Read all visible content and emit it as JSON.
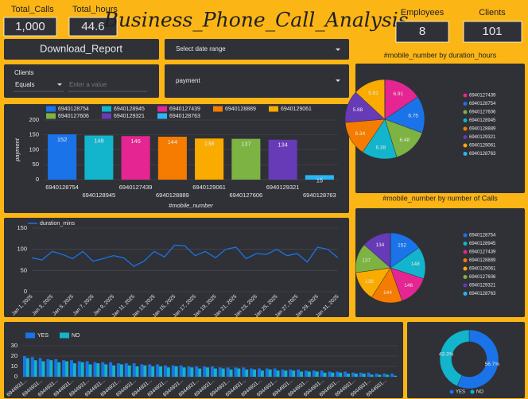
{
  "header": {
    "title": "Business_Phone_Call_Analysis"
  },
  "kpis": [
    {
      "label": "Total_Calls",
      "value": "1,000"
    },
    {
      "label": "Total_hours",
      "value": "44.6"
    },
    {
      "label": "Employees",
      "value": "8"
    },
    {
      "label": "Clients",
      "value": "101"
    }
  ],
  "controls": {
    "download": "Download_Report",
    "date_range": "Select date range",
    "filter": {
      "label": "Clients",
      "operator": "Equals",
      "placeholder": "Enter a value"
    },
    "metric": "payment"
  },
  "chart_data": [
    {
      "type": "bar",
      "categories": [
        "6940128754",
        "6940128945",
        "6940127439",
        "6940128889",
        "6940129061",
        "6940127606",
        "6940129321",
        "6940128763"
      ],
      "values": [
        152,
        148,
        146,
        144,
        138,
        137,
        134,
        15
      ],
      "colors": [
        "#1a73e8",
        "#12b5cb",
        "#e52592",
        "#f57c00",
        "#f9ab00",
        "#7cb342",
        "#673ab7",
        "#29b6f6"
      ],
      "xlabel": "#mobile_number",
      "ylabel": "payment",
      "ylim": [
        0,
        200
      ],
      "yticks": [
        0,
        50,
        100,
        150,
        200
      ],
      "grid": true
    },
    {
      "type": "line",
      "categories": [
        "Jan 1, 2025",
        null,
        "Jan 3, 2025",
        null,
        "Jan 5, 2025",
        null,
        "Jan 7, 2025",
        null,
        "Jan 9, 2025",
        null,
        "Jan 11, 2025",
        null,
        "Jan 13, 2025",
        null,
        "Jan 15, 2025",
        null,
        "Jan 17, 2025",
        null,
        "Jan 19, 2025",
        null,
        "Jan 21, 2025",
        null,
        "Jan 23, 2025",
        null,
        "Jan 25, 2025",
        null,
        "Jan 27, 2025",
        null,
        "Jan 29, 2025",
        null,
        "Jan 31, 2025"
      ],
      "series": [
        {
          "name": "duration_mins",
          "color": "#1a73e8",
          "values": [
            80,
            75,
            95,
            88,
            78,
            95,
            72,
            78,
            85,
            80,
            60,
            72,
            95,
            82,
            110,
            108,
            85,
            95,
            80,
            100,
            105,
            78,
            90,
            88,
            100,
            85,
            90,
            70,
            105,
            100,
            80
          ]
        }
      ],
      "ylim": [
        0,
        150
      ],
      "yticks": [
        0,
        50,
        100,
        150
      ],
      "grid": true
    },
    {
      "type": "pie",
      "title": "#mobile_number by duration_hours",
      "categories": [
        "6940127439",
        "6940128754",
        "6940127606",
        "6940128945",
        "6940128889",
        "6940129321",
        "6940129061",
        "6940128763"
      ],
      "values": [
        6.91,
        6.75,
        6.48,
        6.39,
        6.34,
        5.88,
        5.81,
        0.04
      ],
      "colors": [
        "#e52592",
        "#1a73e8",
        "#7cb342",
        "#12b5cb",
        "#f57c00",
        "#673ab7",
        "#f9ab00",
        "#29b6f6"
      ]
    },
    {
      "type": "pie",
      "title": "#mobile_number by number of Calls",
      "categories": [
        "6940128754",
        "6940128945",
        "6940127439",
        "6940128889",
        "6940129061",
        "6940127606",
        "6940129321",
        "6940128763"
      ],
      "values": [
        152,
        148,
        146,
        144,
        138,
        137,
        134,
        1
      ],
      "colors": [
        "#1a73e8",
        "#12b5cb",
        "#e52592",
        "#f57c00",
        "#f9ab00",
        "#7cb342",
        "#673ab7",
        "#29b6f6"
      ]
    },
    {
      "type": "bar",
      "categories": [
        "6944931...",
        null,
        "6944931...",
        null,
        "6944931...",
        null,
        "6944931...",
        null,
        "6944931...",
        null,
        "6944931...",
        null,
        "6944931...",
        null,
        "6944931...",
        null,
        "6944931...",
        null,
        "6944931...",
        null,
        "6944931...",
        null,
        "6944931...",
        null,
        "6944931...",
        null,
        "6944931...",
        null,
        "6944931...",
        null,
        "6944931...",
        null,
        "6944931...",
        null,
        "6944931...",
        null,
        "6944931...",
        null,
        "6944931...",
        null,
        "6944931...",
        null,
        "6944931...",
        null,
        "6944931...",
        null,
        "6944931...",
        null
      ],
      "series": [
        {
          "name": "YES",
          "color": "#1a73e8",
          "values": [
            20,
            19,
            18,
            17,
            17,
            16,
            16,
            15,
            15,
            14,
            14,
            14,
            13,
            13,
            13,
            12,
            12,
            12,
            11,
            11,
            11,
            10,
            10,
            10,
            10,
            9,
            9,
            9,
            9,
            8,
            8,
            8,
            8,
            7,
            7,
            7,
            6,
            6,
            6,
            5,
            5,
            5,
            4,
            4,
            4,
            3,
            3,
            3
          ]
        },
        {
          "name": "NO",
          "color": "#12b5cb",
          "values": [
            18,
            16,
            15,
            16,
            14,
            15,
            13,
            14,
            12,
            13,
            12,
            11,
            12,
            11,
            10,
            11,
            10,
            10,
            9,
            10,
            9,
            9,
            8,
            9,
            8,
            8,
            7,
            8,
            7,
            7,
            6,
            7,
            6,
            6,
            6,
            5,
            5,
            5,
            4,
            4,
            4,
            3,
            3,
            3,
            2,
            2,
            2,
            1
          ]
        }
      ],
      "ylim": [
        0,
        30
      ],
      "yticks": [
        0,
        10,
        20,
        30
      ],
      "grid": true
    },
    {
      "type": "donut",
      "categories": [
        "YES",
        "NO"
      ],
      "values": [
        56.7,
        43.3
      ],
      "value_labels": [
        "56.7%",
        "43.3%"
      ],
      "colors": [
        "#1a73e8",
        "#12b5cb"
      ]
    }
  ]
}
